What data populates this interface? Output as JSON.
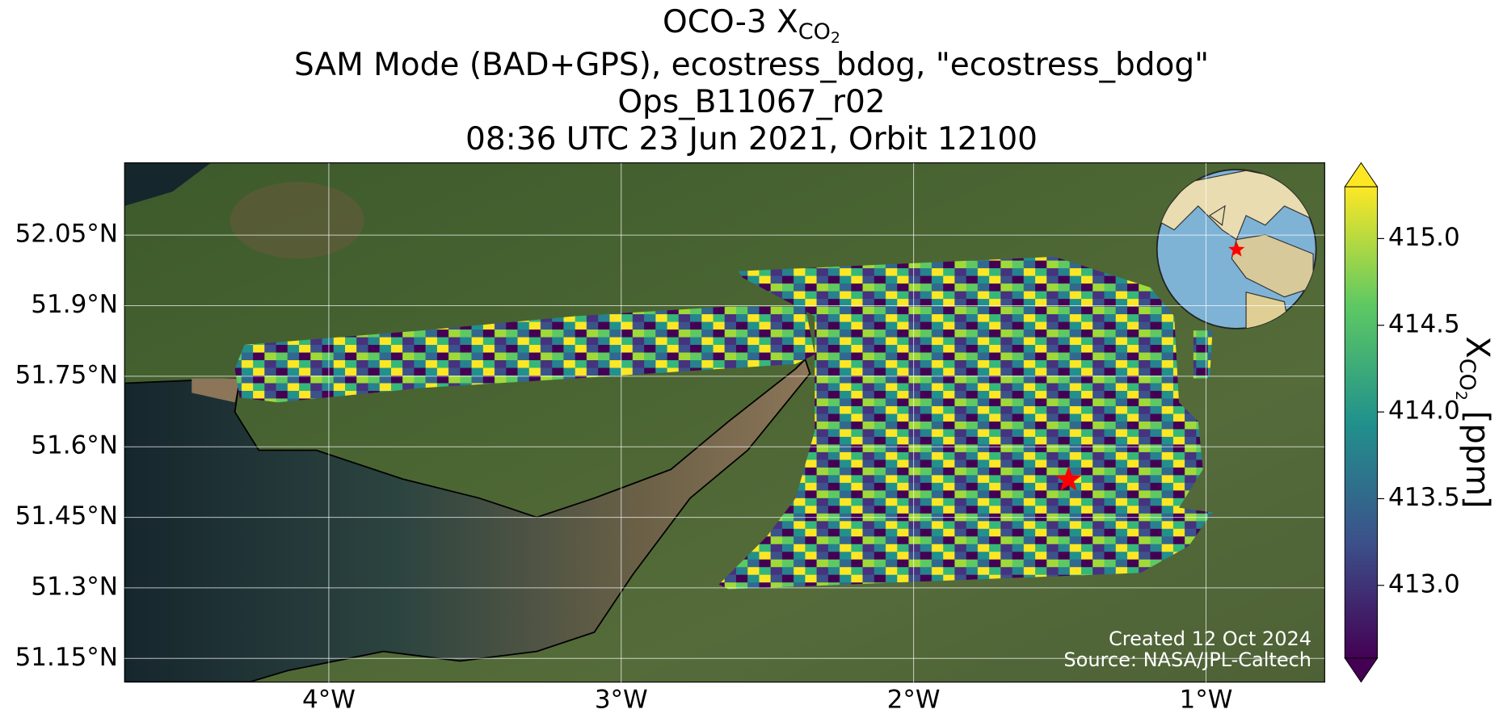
{
  "chart_data": {
    "type": "map",
    "title": {
      "text": "OCO-3 X",
      "subscript": "CO",
      "subsubscript": "2"
    },
    "subtitle": [
      "SAM Mode (BAD+GPS), ecostress_bdog, \"ecostress_bdog\"",
      "Ops_B11067_r02",
      "08:36 UTC 23 Jun 2021, Orbit 12100"
    ],
    "xlim": [
      -4.699,
      -0.595
    ],
    "ylim": [
      51.099,
      52.203
    ],
    "xticks": [
      {
        "value": -4,
        "label": "4°W"
      },
      {
        "value": -3,
        "label": "3°W"
      },
      {
        "value": -2,
        "label": "2°W"
      },
      {
        "value": -1,
        "label": "1°W"
      }
    ],
    "yticks": [
      {
        "value": 51.15,
        "label": "51.15°N"
      },
      {
        "value": 51.3,
        "label": "51.3°N"
      },
      {
        "value": 51.45,
        "label": "51.45°N"
      },
      {
        "value": 51.6,
        "label": "51.6°N"
      },
      {
        "value": 51.75,
        "label": "51.75°N"
      },
      {
        "value": 51.9,
        "label": "51.9°N"
      },
      {
        "value": 52.05,
        "label": "52.05°N"
      }
    ],
    "grid": true,
    "target": {
      "lon": -1.47,
      "lat": 51.53,
      "color": "#ff0000"
    },
    "colorbar": {
      "label": {
        "text": "X",
        "subscript": "CO",
        "subsubscript": "2",
        "unit": " [ppm]"
      },
      "lim": [
        412.58,
        415.3
      ],
      "ticks": [
        {
          "value": 413,
          "label": "413.0"
        },
        {
          "value": 413.5,
          "label": "413.5"
        },
        {
          "value": 414,
          "label": "414.0"
        },
        {
          "value": 414.5,
          "label": "414.5"
        },
        {
          "value": 415,
          "label": "415.0"
        }
      ]
    },
    "annotations": [
      "Created 12 Oct 2024",
      "Source: NASA/JPL-Caltech"
    ]
  }
}
